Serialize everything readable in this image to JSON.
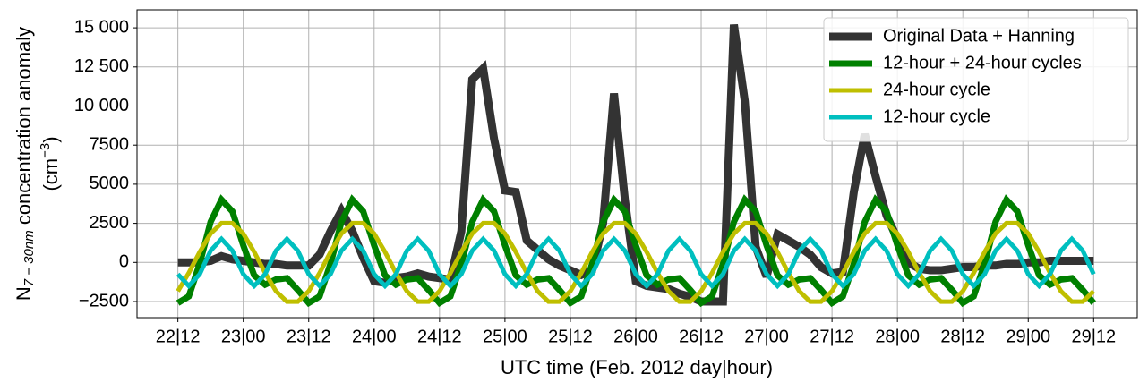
{
  "chart_data": {
    "type": "line",
    "xlabel": "UTC time (Feb. 2012 day|hour)",
    "ylabel": {
      "main": "N",
      "sub": "7 − 30nm",
      "rest": " concentration anomaly",
      "unit_open": "(cm",
      "unit_sup": "−3",
      "unit_close": ")"
    },
    "x": [
      0,
      2,
      4,
      6,
      8,
      10,
      12,
      14,
      16,
      18,
      20,
      22,
      24,
      26,
      28,
      30,
      32,
      34,
      36,
      38,
      40,
      42,
      44,
      46,
      48,
      50,
      52,
      54,
      56,
      58,
      60,
      62,
      64,
      66,
      68,
      70,
      72,
      74,
      76,
      78,
      80,
      82,
      84,
      86,
      88,
      90,
      92,
      94,
      96,
      98,
      100,
      102,
      104,
      106,
      108,
      110,
      112,
      114,
      116,
      118,
      120,
      122,
      124,
      126,
      128,
      130,
      132,
      134,
      136,
      138,
      140,
      142,
      144,
      146,
      148,
      150,
      152,
      154,
      156,
      158,
      160,
      162,
      164,
      166,
      168
    ],
    "xlim": [
      -7.5,
      176
    ],
    "xticks": [
      {
        "value": 0,
        "label": "22|12"
      },
      {
        "value": 12,
        "label": "23|00"
      },
      {
        "value": 24,
        "label": "23|12"
      },
      {
        "value": 36,
        "label": "24|00"
      },
      {
        "value": 48,
        "label": "24|12"
      },
      {
        "value": 60,
        "label": "25|00"
      },
      {
        "value": 72,
        "label": "25|12"
      },
      {
        "value": 84,
        "label": "26|00"
      },
      {
        "value": 96,
        "label": "26|12"
      },
      {
        "value": 108,
        "label": "27|00"
      },
      {
        "value": 120,
        "label": "27|12"
      },
      {
        "value": 132,
        "label": "28|00"
      },
      {
        "value": 144,
        "label": "28|12"
      },
      {
        "value": 156,
        "label": "29|00"
      },
      {
        "value": 168,
        "label": "29|12"
      }
    ],
    "ylim": [
      -3530,
      16150
    ],
    "yticks": [
      {
        "value": -2500,
        "label": "−2500"
      },
      0,
      2500,
      5000,
      7500,
      {
        "value": 10000,
        "label": "10 000"
      },
      {
        "value": 12500,
        "label": "12 500"
      },
      {
        "value": 15000,
        "label": "15 000"
      }
    ],
    "grid": true,
    "legend": "upper right",
    "series": [
      {
        "name": "Original Data + Hanning",
        "color": "#333333",
        "linewidth": 9,
        "values": [
          0,
          0,
          0,
          100,
          400,
          200,
          100,
          0,
          -100,
          -100,
          -200,
          -200,
          -200,
          500,
          2000,
          3300,
          2000,
          300,
          -1200,
          -1300,
          -1000,
          -900,
          -700,
          -900,
          -1000,
          -1100,
          2000,
          11700,
          12400,
          7900,
          4600,
          4500,
          1400,
          800,
          200,
          -200,
          -500,
          -800,
          -500,
          2500,
          10800,
          4000,
          -1200,
          -1500,
          -1600,
          -1700,
          -2000,
          -2200,
          -2500,
          -2500,
          -2500,
          15200,
          10300,
          1000,
          -900,
          1800,
          1400,
          1000,
          500,
          -300,
          -700,
          -600,
          4500,
          8200,
          5500,
          3000,
          1500,
          0,
          -400,
          -500,
          -500,
          -400,
          -300,
          -300,
          -200,
          -200,
          -100,
          -100,
          0,
          0,
          100,
          100,
          100,
          100,
          100
        ]
      },
      {
        "name": "12-hour + 24-hour cycles",
        "color": "#008000",
        "linewidth": 7,
        "values": [
          -2590,
          -2170,
          -80,
          2590,
          4010,
          3260,
          1090,
          -830,
          -1420,
          -1090,
          -1010,
          -1760,
          -2590,
          -2170,
          -80,
          2590,
          4010,
          3260,
          1090,
          -830,
          -1420,
          -1090,
          -1010,
          -1760,
          -2590,
          -2170,
          -80,
          2590,
          4010,
          3260,
          1090,
          -830,
          -1420,
          -1090,
          -1010,
          -1760,
          -2590,
          -2170,
          -80,
          2590,
          4010,
          3260,
          1090,
          -830,
          -1420,
          -1090,
          -1010,
          -1760,
          -2590,
          -2170,
          -80,
          2590,
          4010,
          3260,
          1090,
          -830,
          -1420,
          -1090,
          -1010,
          -1760,
          -2590,
          -2170,
          -80,
          2590,
          4010,
          3260,
          1090,
          -830,
          -1420,
          -1090,
          -1010,
          -1760,
          -2590,
          -2170,
          -80,
          2590,
          4010,
          3260,
          1090,
          -830,
          -1420,
          -1090,
          -1010,
          -1760,
          -2590
        ]
      },
      {
        "name": "24-hour cycle",
        "color": "#bfbf00",
        "linewidth": 5,
        "values": [
          -1840,
          -670,
          670,
          1840,
          2510,
          2510,
          1840,
          670,
          -670,
          -1840,
          -2510,
          -2510,
          -1840,
          -670,
          670,
          1840,
          2510,
          2510,
          1840,
          670,
          -670,
          -1840,
          -2510,
          -2510,
          -1840,
          -670,
          670,
          1840,
          2510,
          2510,
          1840,
          670,
          -670,
          -1840,
          -2510,
          -2510,
          -1840,
          -670,
          670,
          1840,
          2510,
          2510,
          1840,
          670,
          -670,
          -1840,
          -2510,
          -2510,
          -1840,
          -670,
          670,
          1840,
          2510,
          2510,
          1840,
          670,
          -670,
          -1840,
          -2510,
          -2510,
          -1840,
          -670,
          670,
          1840,
          2510,
          2510,
          1840,
          670,
          -670,
          -1840,
          -2510,
          -2510,
          -1840,
          -670,
          670,
          1840,
          2510,
          2510,
          1840,
          670,
          -670,
          -1840,
          -2510,
          -2510,
          -1840
        ]
      },
      {
        "name": "12-hour cycle",
        "color": "#00bfbf",
        "linewidth": 5,
        "values": [
          -750,
          -1500,
          -750,
          750,
          1500,
          750,
          -750,
          -1500,
          -750,
          750,
          1500,
          750,
          -750,
          -1500,
          -750,
          750,
          1500,
          750,
          -750,
          -1500,
          -750,
          750,
          1500,
          750,
          -750,
          -1500,
          -750,
          750,
          1500,
          750,
          -750,
          -1500,
          -750,
          750,
          1500,
          750,
          -750,
          -1500,
          -750,
          750,
          1500,
          750,
          -750,
          -1500,
          -750,
          750,
          1500,
          750,
          -750,
          -1500,
          -750,
          750,
          1500,
          750,
          -750,
          -1500,
          -750,
          750,
          1500,
          750,
          -750,
          -1500,
          -750,
          750,
          1500,
          750,
          -750,
          -1500,
          -750,
          750,
          1500,
          750,
          -750,
          -1500,
          -750,
          750,
          1500,
          750,
          -750,
          -1500,
          -750,
          750,
          1500,
          750,
          -750
        ]
      }
    ]
  }
}
